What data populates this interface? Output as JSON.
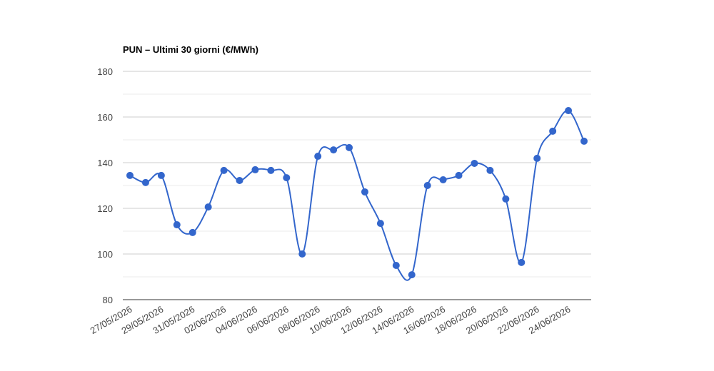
{
  "chart_data": {
    "type": "line",
    "title": "PUN – Ultimi 30 giorni (€/MWh)",
    "categories": [
      "27/05/2026",
      null,
      "29/05/2026",
      null,
      "31/05/2026",
      null,
      "02/06/2026",
      null,
      "04/06/2026",
      null,
      "06/06/2026",
      null,
      "08/06/2026",
      null,
      "10/06/2026",
      null,
      "12/06/2026",
      null,
      "14/06/2026",
      null,
      "16/06/2026",
      null,
      "18/06/2026",
      null,
      "20/06/2026",
      null,
      "22/06/2026",
      null,
      "24/06/2026",
      null
    ],
    "series": [
      {
        "color": "#3366cc",
        "values": [
          134.4,
          131.3,
          134.4,
          112.8,
          109.4,
          120.6,
          136.6,
          132.2,
          136.9,
          136.6,
          133.4,
          100,
          142.8,
          145.6,
          146.6,
          127.2,
          113.4,
          95,
          90.9,
          130,
          132.5,
          134.4,
          139.7,
          136.6,
          124.1,
          96.3,
          141.9,
          153.8,
          162.8,
          149.4
        ]
      }
    ],
    "ylim": [
      80,
      180
    ],
    "yticks": [
      80,
      100,
      120,
      140,
      160,
      180
    ],
    "minor_yticks": [
      90,
      110,
      130,
      150,
      170
    ],
    "grid": true,
    "smooth": true
  }
}
